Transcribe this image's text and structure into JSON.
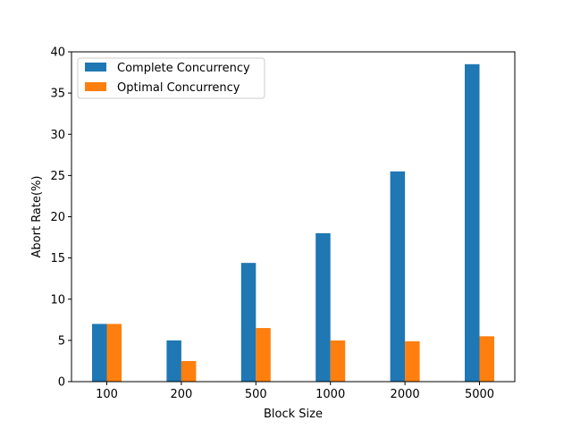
{
  "chart_data": {
    "type": "bar",
    "title": "",
    "xlabel": "Block Size",
    "ylabel": "Abort Rate(%)",
    "categories": [
      "100",
      "200",
      "500",
      "1000",
      "2000",
      "5000"
    ],
    "ylim": [
      0,
      40
    ],
    "yticks": [
      "0",
      "5",
      "10",
      "15",
      "20",
      "25",
      "30",
      "35",
      "40"
    ],
    "grid": false,
    "legend_position": "top-left",
    "series": [
      {
        "name": "Complete Concurrency",
        "color": "#1f77b4",
        "values": [
          7.0,
          5.0,
          14.4,
          18.0,
          25.5,
          38.5
        ]
      },
      {
        "name": "Optimal Concurrency",
        "color": "#ff7f0e",
        "values": [
          7.0,
          2.5,
          6.5,
          5.0,
          4.9,
          5.5
        ]
      }
    ]
  }
}
